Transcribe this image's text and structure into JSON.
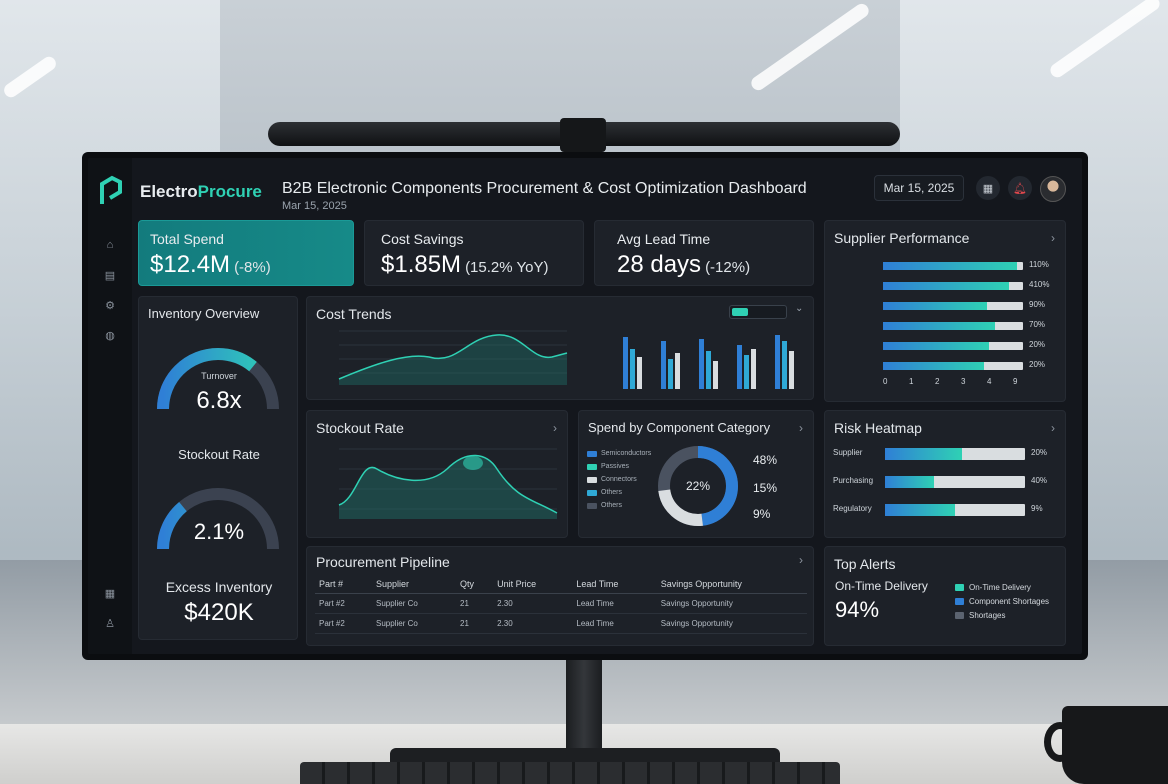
{
  "app": {
    "brand_prefix": "Electro",
    "brand_suffix": "Procure",
    "title": "B2B Electronic Components Procurement & Cost Optimization Dashboard",
    "date": "Mar 15, 2025",
    "date_picker": "Mar 15, 2025"
  },
  "colors": {
    "accent": "#2fd1b4",
    "blue": "#2f7fd6",
    "kpi_highlight": "#147c7c"
  },
  "kpis": [
    {
      "label": "Total Spend",
      "value": "$12.4M",
      "delta": "(-8%)"
    },
    {
      "label": "Cost Savings",
      "value": "$1.85M",
      "delta": "(15.2% YoY)"
    },
    {
      "label": "Avg Lead Time",
      "value": "28 days",
      "delta": "(-12%)"
    }
  ],
  "inventory": {
    "title": "Inventory Overview",
    "turnover_label": "Turnover",
    "turnover_value": "6.8x",
    "turnover_level": 0.72,
    "stockout_label": "Stockout Rate",
    "stockout_value": "2.1%",
    "stockout_level": 0.28,
    "excess_label": "Excess Inventory",
    "excess_value": "$420K"
  },
  "cost_trends": {
    "title": "Cost Trends"
  },
  "stockout_chart": {
    "title": "Stockout Rate"
  },
  "supplier_performance": {
    "title": "Supplier Performance",
    "rows": [
      {
        "value": 0.96,
        "pct": "110%"
      },
      {
        "value": 0.9,
        "pct": "410%"
      },
      {
        "value": 0.74,
        "pct": "90%"
      },
      {
        "value": 0.8,
        "pct": "70%"
      },
      {
        "value": 0.76,
        "pct": "20%"
      },
      {
        "value": 0.72,
        "pct": "20%"
      }
    ],
    "axis": [
      "0",
      "1",
      "2",
      "3",
      "4",
      "9"
    ]
  },
  "spend_by_category": {
    "title": "Spend by Component Category",
    "center_label": "22%",
    "legend": [
      "Semiconductors",
      "Passives",
      "Connectors",
      "Others",
      "Others"
    ],
    "pcts": [
      "48%",
      "15%",
      "9%"
    ]
  },
  "risk_heatmap": {
    "title": "Risk Heatmap",
    "rows": [
      {
        "label": "Supplier",
        "value": 0.55,
        "pct": "20%"
      },
      {
        "label": "Purchasing",
        "value": 0.35,
        "pct": "40%"
      },
      {
        "label": "Regulatory",
        "value": 0.5,
        "pct": "9%"
      }
    ]
  },
  "pipeline": {
    "title": "Procurement Pipeline",
    "headers": [
      "Part #",
      "Supplier",
      "Qty",
      "Unit Price",
      "Lead Time",
      "Savings Opportunity"
    ],
    "rows": [
      [
        "Part #2",
        "Supplier Co",
        "21",
        "2.30",
        "Lead Time",
        "Savings Opportunity"
      ],
      [
        "Part #2",
        "Supplier Co",
        "21",
        "2.30",
        "Lead Time",
        "Savings Opportunity"
      ]
    ]
  },
  "alerts": {
    "title": "Top Alerts",
    "ontime_label": "On-Time Delivery",
    "ontime_value": "94%",
    "items": [
      "On-Time Delivery",
      "Component Shortages",
      "Shortages"
    ]
  }
}
